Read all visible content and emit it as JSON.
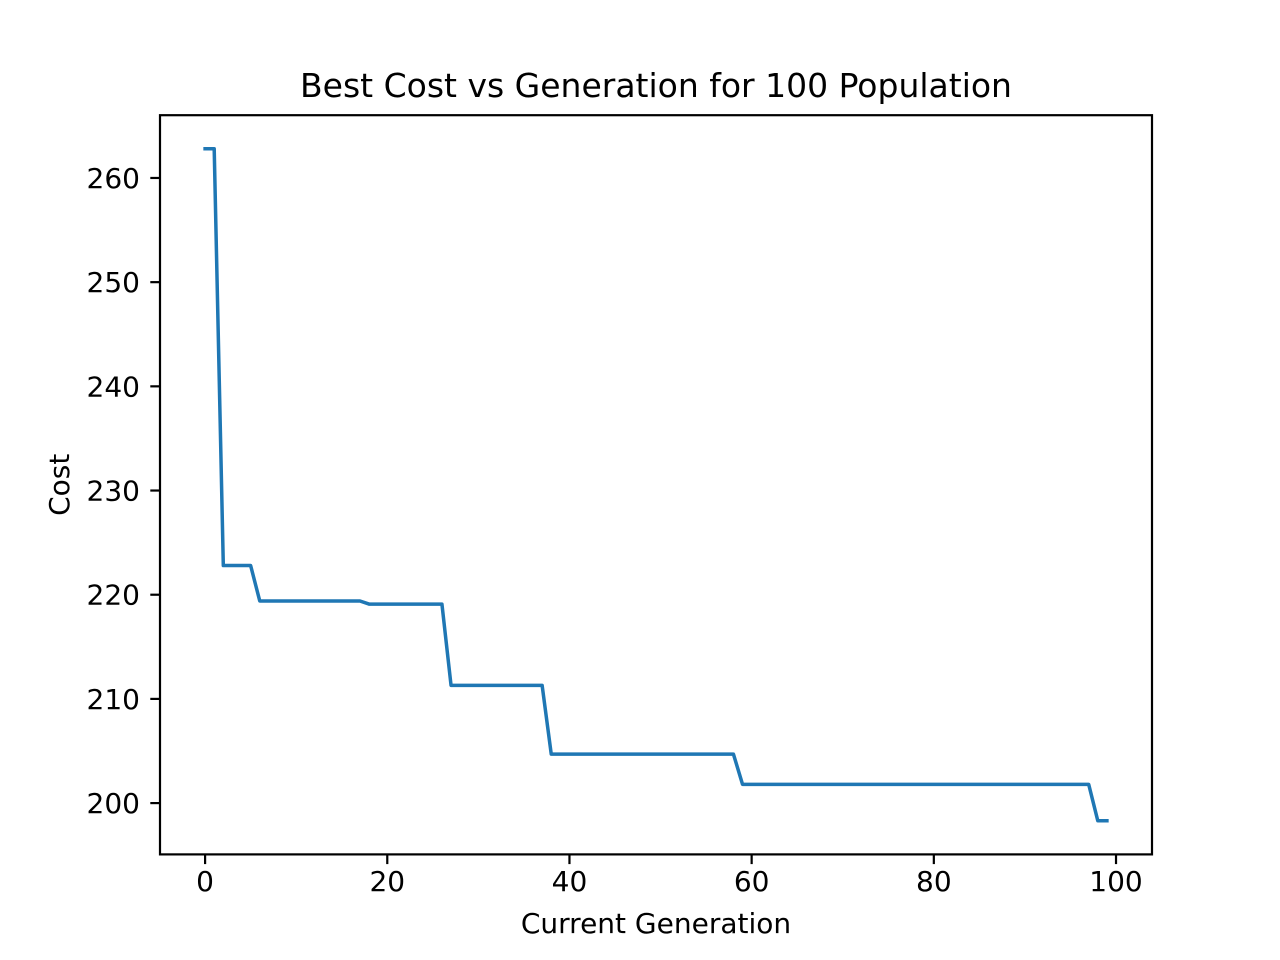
{
  "figure": {
    "background": "#ffffff"
  },
  "chart_data": {
    "type": "line",
    "title": "Best Cost vs Generation for 100 Population",
    "xlabel": "Current Generation",
    "ylabel": "Cost",
    "xlim": [
      -4.95,
      103.95
    ],
    "ylim": [
      195.075,
      266.025
    ],
    "xticks": [
      0,
      20,
      40,
      60,
      80,
      100
    ],
    "yticks": [
      200,
      210,
      220,
      230,
      240,
      250,
      260
    ],
    "grid": false,
    "legend": false,
    "line_color": "#1f77b4",
    "spine_color": "#000000",
    "series": [
      {
        "name": "Best Cost",
        "x": [
          0,
          1,
          2,
          3,
          4,
          5,
          6,
          7,
          8,
          9,
          10,
          11,
          12,
          13,
          14,
          15,
          16,
          17,
          18,
          19,
          20,
          21,
          22,
          23,
          24,
          25,
          26,
          27,
          28,
          29,
          30,
          31,
          32,
          33,
          34,
          35,
          36,
          37,
          38,
          39,
          40,
          41,
          42,
          43,
          44,
          45,
          46,
          47,
          48,
          49,
          50,
          51,
          52,
          53,
          54,
          55,
          56,
          57,
          58,
          59,
          60,
          61,
          62,
          63,
          64,
          65,
          66,
          67,
          68,
          69,
          70,
          71,
          72,
          73,
          74,
          75,
          76,
          77,
          78,
          79,
          80,
          81,
          82,
          83,
          84,
          85,
          86,
          87,
          88,
          89,
          90,
          91,
          92,
          93,
          94,
          95,
          96,
          97,
          98,
          99
        ],
        "y": [
          262.8,
          262.8,
          222.8,
          222.8,
          222.8,
          222.8,
          219.4,
          219.4,
          219.4,
          219.4,
          219.4,
          219.4,
          219.4,
          219.4,
          219.4,
          219.4,
          219.4,
          219.4,
          219.1,
          219.1,
          219.1,
          219.1,
          219.1,
          219.1,
          219.1,
          219.1,
          219.1,
          211.3,
          211.3,
          211.3,
          211.3,
          211.3,
          211.3,
          211.3,
          211.3,
          211.3,
          211.3,
          211.3,
          204.7,
          204.7,
          204.7,
          204.7,
          204.7,
          204.7,
          204.7,
          204.7,
          204.7,
          204.7,
          204.7,
          204.7,
          204.7,
          204.7,
          204.7,
          204.7,
          204.7,
          204.7,
          204.7,
          204.7,
          204.7,
          201.8,
          201.8,
          201.8,
          201.8,
          201.8,
          201.8,
          201.8,
          201.8,
          201.8,
          201.8,
          201.8,
          201.8,
          201.8,
          201.8,
          201.8,
          201.8,
          201.8,
          201.8,
          201.8,
          201.8,
          201.8,
          201.8,
          201.8,
          201.8,
          201.8,
          201.8,
          201.8,
          201.8,
          201.8,
          201.8,
          201.8,
          201.8,
          201.8,
          201.8,
          201.8,
          201.8,
          201.8,
          201.8,
          201.8,
          198.3,
          198.3
        ]
      }
    ]
  }
}
